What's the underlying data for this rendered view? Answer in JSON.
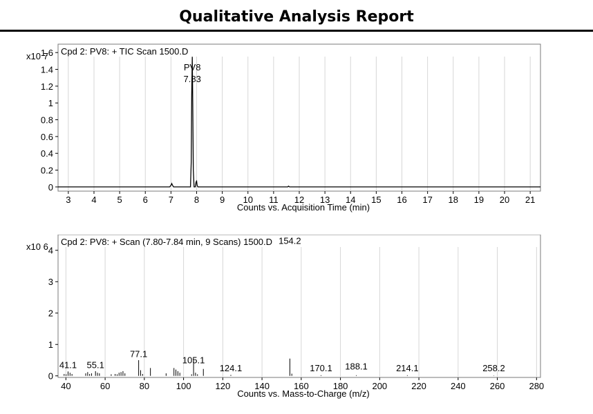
{
  "report": {
    "title": "Qualitative Analysis Report"
  },
  "chart_data": [
    {
      "type": "line",
      "title": "Cpd 2: PV8: + TIC Scan 1500.D",
      "xlabel": "Counts vs. Acquisition Time (min)",
      "ylabel": "",
      "y_exponent": "x10 7",
      "xlim": [
        2.6,
        21.4
      ],
      "ylim": [
        -0.05,
        1.7
      ],
      "xticks": [
        3,
        4,
        5,
        6,
        7,
        8,
        9,
        10,
        11,
        12,
        13,
        14,
        15,
        16,
        17,
        18,
        19,
        20,
        21
      ],
      "yticks": [
        0,
        0.2,
        0.4,
        0.6,
        0.8,
        1,
        1.2,
        1.4,
        1.6
      ],
      "ytick_labels": [
        "0",
        "0.2",
        "0.4",
        "0.6",
        "0.8",
        "1",
        "1.2",
        "1.4",
        "1.6"
      ],
      "grid": true,
      "series": [
        {
          "x": [
            2.6,
            6.95,
            7.0,
            7.03,
            7.06,
            7.1,
            7.2,
            7.76,
            7.79,
            7.81,
            7.83,
            7.85,
            7.87,
            7.9,
            7.95,
            7.98,
            8.0,
            8.02,
            8.05,
            11.55,
            11.58,
            11.62,
            21.4
          ],
          "y": [
            0,
            0,
            0.02,
            0.04,
            0.02,
            0,
            0,
            0,
            0.3,
            1.1,
            1.55,
            1.0,
            0.2,
            0,
            0,
            0.06,
            0.07,
            0.02,
            0,
            0,
            0.01,
            0,
            0
          ]
        }
      ],
      "annotations": [
        {
          "x": 7.83,
          "lines": [
            "PV8",
            "7.83"
          ]
        }
      ]
    },
    {
      "type": "bar",
      "title": "Cpd 2: PV8: + Scan (7.80-7.84 min, 9 Scans) 1500.D",
      "xlabel": "Counts vs. Mass-to-Charge (m/z)",
      "ylabel": "",
      "y_exponent": "x10 6",
      "xlim": [
        36,
        282
      ],
      "ylim": [
        -0.05,
        4.5
      ],
      "xticks": [
        40,
        60,
        80,
        100,
        120,
        140,
        160,
        180,
        200,
        220,
        240,
        260,
        280
      ],
      "yticks": [
        0,
        1,
        2,
        3,
        4
      ],
      "grid": true,
      "peaks": {
        "x": [
          39.1,
          40.1,
          41.1,
          42.1,
          43.1,
          50.1,
          51.1,
          52.1,
          53.1,
          55.1,
          56.1,
          57.1,
          63.1,
          65.1,
          66.1,
          67.1,
          68.1,
          69.1,
          70.1,
          77.1,
          78.1,
          79.1,
          83.1,
          91.1,
          95.1,
          96.1,
          97.1,
          98.1,
          104.1,
          105.1,
          106.1,
          107.1,
          110.1,
          124.1,
          154.2,
          155.2,
          170.1,
          188.1,
          214.1,
          258.2
        ],
        "y": [
          0.06,
          0.05,
          0.14,
          0.1,
          0.06,
          0.08,
          0.12,
          0.06,
          0.08,
          0.15,
          0.1,
          0.08,
          0.05,
          0.06,
          0.05,
          0.1,
          0.12,
          0.15,
          0.08,
          0.5,
          0.18,
          0.06,
          0.25,
          0.08,
          0.25,
          0.2,
          0.15,
          0.1,
          0.05,
          0.5,
          0.1,
          0.05,
          0.22,
          0.03,
          0.55,
          0.07,
          0.02,
          0.02,
          0.02,
          0.01
        ]
      },
      "peak_labels": [
        {
          "x": 41.1,
          "label": "41.1",
          "label_y": 0.25
        },
        {
          "x": 55.1,
          "label": "55.1",
          "label_y": 0.25
        },
        {
          "x": 77.1,
          "label": "77.1",
          "label_y": 0.6
        },
        {
          "x": 105.1,
          "label": "105.1",
          "label_y": 0.4
        },
        {
          "x": 124.1,
          "label": "124.1",
          "label_y": 0.15
        },
        {
          "x": 154.2,
          "label": "154.2",
          "label_y": 4.2
        },
        {
          "x": 170.1,
          "label": "170.1",
          "label_y": 0.15
        },
        {
          "x": 188.1,
          "label": "188.1",
          "label_y": 0.2
        },
        {
          "x": 214.1,
          "label": "214.1",
          "label_y": 0.15
        },
        {
          "x": 258.2,
          "label": "258.2",
          "label_y": 0.15
        }
      ]
    }
  ]
}
